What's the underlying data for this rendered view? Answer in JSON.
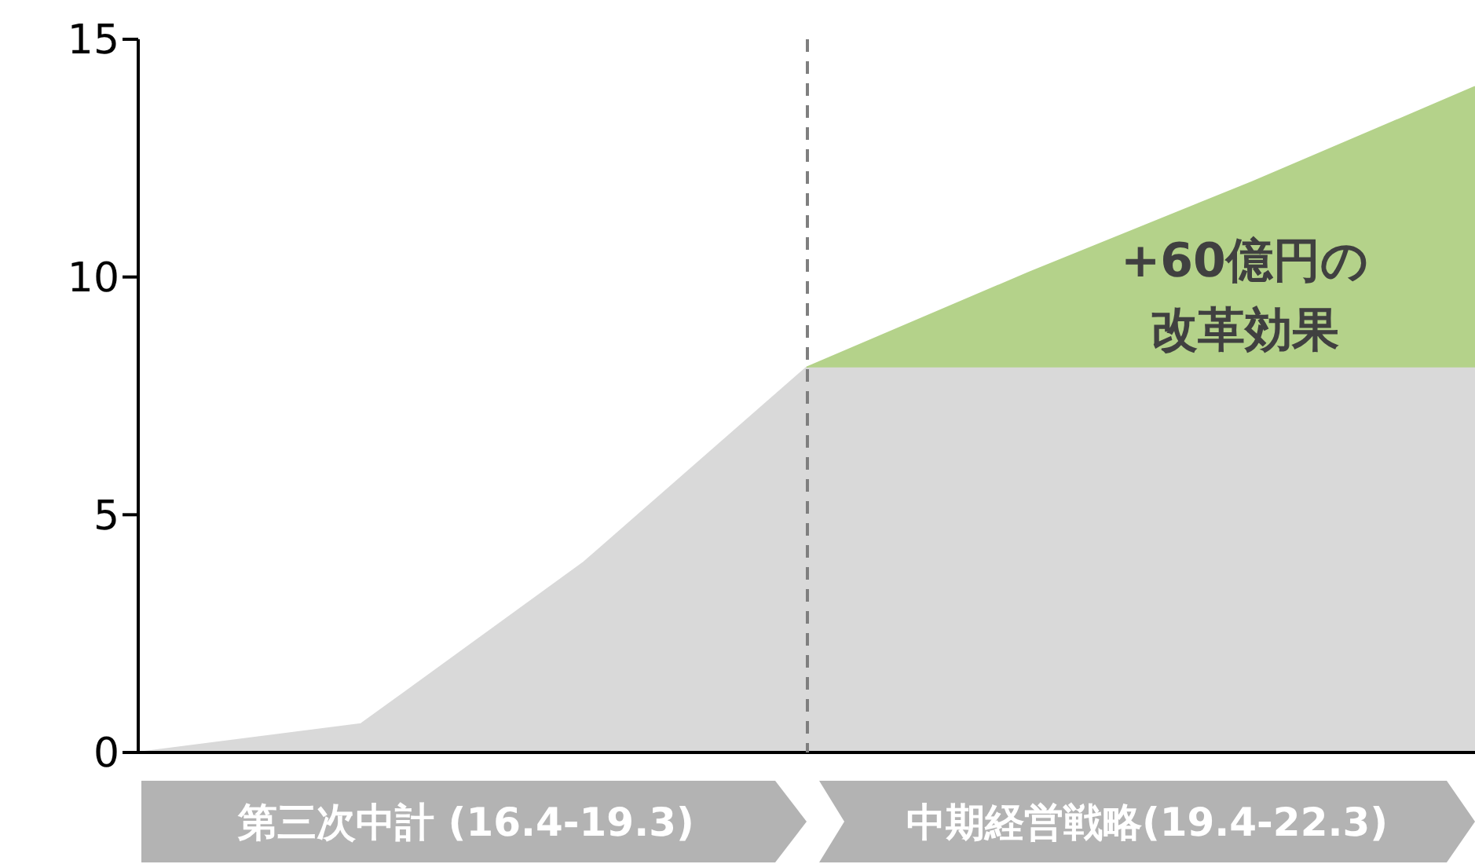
{
  "chart_data": {
    "type": "area",
    "stacked": true,
    "categories": [
      null,
      null,
      null,
      null,
      null,
      null,
      null
    ],
    "series": [
      {
        "color": "#d9d9d9",
        "values": [
          0,
          0.6,
          4,
          8.1,
          8.1,
          8.1,
          8.1
        ]
      },
      {
        "color": "#b4d28a",
        "values": [
          null,
          null,
          null,
          0,
          2,
          3.9,
          5.9
        ]
      }
    ],
    "ylim": [
      0,
      15
    ],
    "yticks": [
      0,
      5,
      10,
      15
    ],
    "tick_labels": "y",
    "grid": false,
    "legend": false,
    "annotations": [
      "+60億円の改革効果",
      "第三次中計 (16.4-19.3)",
      "中期経営戦略(19.4-22.3)"
    ]
  }
}
